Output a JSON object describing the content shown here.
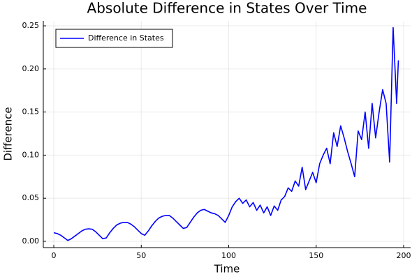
{
  "chart_data": {
    "type": "line",
    "title": "Absolute Difference in States Over Time",
    "xlabel": "Time",
    "ylabel": "Difference",
    "x": [
      0,
      2,
      4,
      6,
      8,
      10,
      12,
      14,
      16,
      18,
      20,
      22,
      24,
      26,
      28,
      30,
      32,
      34,
      36,
      38,
      40,
      42,
      44,
      46,
      48,
      50,
      52,
      54,
      56,
      58,
      60,
      62,
      64,
      66,
      68,
      70,
      72,
      74,
      76,
      78,
      80,
      82,
      84,
      86,
      88,
      90,
      92,
      94,
      96,
      98,
      100,
      102,
      104,
      106,
      108,
      110,
      112,
      114,
      116,
      118,
      120,
      122,
      124,
      126,
      128,
      130,
      132,
      134,
      136,
      138,
      140,
      142,
      144,
      146,
      148,
      150,
      152,
      154,
      156,
      158,
      160,
      162,
      164,
      166,
      168,
      170,
      172,
      174,
      176,
      178,
      180,
      182,
      184,
      186,
      188,
      190,
      192,
      194,
      196,
      197
    ],
    "series": [
      {
        "name": "Difference in States",
        "color": "#0000ff",
        "values": [
          0.01,
          0.009,
          0.007,
          0.004,
          0.001,
          0.003,
          0.006,
          0.009,
          0.012,
          0.014,
          0.0145,
          0.014,
          0.011,
          0.007,
          0.003,
          0.004,
          0.01,
          0.015,
          0.019,
          0.021,
          0.022,
          0.022,
          0.02,
          0.017,
          0.013,
          0.009,
          0.007,
          0.012,
          0.018,
          0.023,
          0.027,
          0.029,
          0.03,
          0.03,
          0.027,
          0.023,
          0.019,
          0.015,
          0.016,
          0.022,
          0.028,
          0.033,
          0.036,
          0.037,
          0.035,
          0.033,
          0.032,
          0.03,
          0.026,
          0.022,
          0.03,
          0.04,
          0.046,
          0.05,
          0.044,
          0.048,
          0.04,
          0.045,
          0.036,
          0.042,
          0.033,
          0.04,
          0.03,
          0.041,
          0.036,
          0.048,
          0.052,
          0.062,
          0.058,
          0.07,
          0.064,
          0.086,
          0.06,
          0.07,
          0.08,
          0.068,
          0.09,
          0.1,
          0.108,
          0.09,
          0.126,
          0.11,
          0.134,
          0.12,
          0.104,
          0.09,
          0.075,
          0.128,
          0.118,
          0.15,
          0.108,
          0.16,
          0.12,
          0.15,
          0.176,
          0.16,
          0.092,
          0.248,
          0.16,
          0.21
        ]
      }
    ],
    "xlim": [
      -6,
      204
    ],
    "xticks": [
      0,
      50,
      100,
      150,
      200
    ],
    "ylim": [
      -0.0073,
      0.2557
    ],
    "yticks": [
      {
        "value": 0,
        "label": "0.00"
      },
      {
        "value": 0.05,
        "label": "0.05"
      },
      {
        "value": 0.1,
        "label": "0.10"
      },
      {
        "value": 0.15,
        "label": "0.15"
      },
      {
        "value": 0.2,
        "label": "0.20"
      },
      {
        "value": 0.25,
        "label": "0.25"
      }
    ],
    "grid": true,
    "legend": "top-left"
  }
}
